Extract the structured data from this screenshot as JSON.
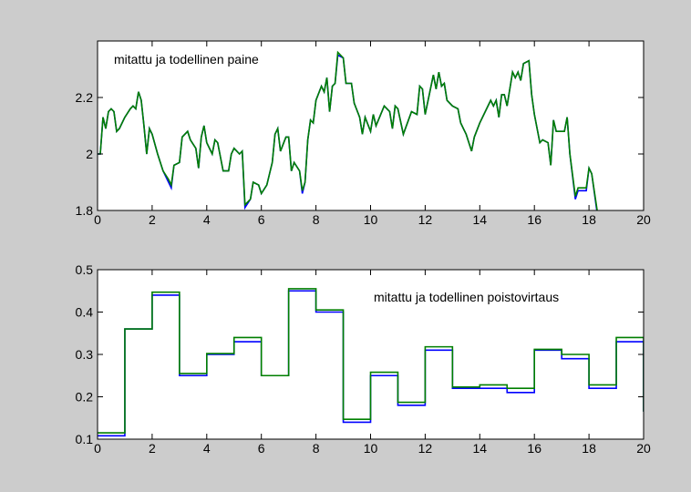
{
  "chart_data": [
    {
      "type": "line",
      "annotation": "mitattu ja todellinen paine",
      "x": [
        0,
        0.1,
        0.2,
        0.3,
        0.4,
        0.5,
        0.6,
        0.7,
        0.8,
        1.0,
        1.2,
        1.3,
        1.4,
        1.5,
        1.6,
        1.7,
        1.8,
        1.9,
        2.0,
        2.2,
        2.4,
        2.6,
        2.7,
        2.8,
        3.0,
        3.1,
        3.3,
        3.4,
        3.6,
        3.7,
        3.8,
        3.9,
        4.0,
        4.2,
        4.3,
        4.4,
        4.6,
        4.8,
        4.9,
        5.0,
        5.2,
        5.3,
        5.4,
        5.6,
        5.7,
        5.9,
        6.0,
        6.2,
        6.4,
        6.5,
        6.6,
        6.7,
        6.9,
        7.0,
        7.1,
        7.2,
        7.4,
        7.5,
        7.6,
        7.7,
        7.8,
        7.9,
        8.0,
        8.2,
        8.3,
        8.4,
        8.5,
        8.6,
        8.7,
        8.8,
        9.0,
        9.1,
        9.3,
        9.4,
        9.6,
        9.7,
        9.8,
        10.0,
        10.1,
        10.2,
        10.5,
        10.7,
        10.8,
        10.9,
        11.0,
        11.2,
        11.5,
        11.7,
        11.8,
        11.9,
        12.0,
        12.3,
        12.4,
        12.5,
        12.6,
        12.7,
        12.8,
        13.0,
        13.2,
        13.3,
        13.5,
        13.7,
        13.8,
        14.0,
        14.2,
        14.4,
        14.5,
        14.6,
        14.7,
        14.8,
        14.9,
        15.0,
        15.2,
        15.3,
        15.4,
        15.5,
        15.6,
        15.8,
        15.9,
        16.0,
        16.2,
        16.3,
        16.5,
        16.6,
        16.7,
        16.8,
        17.1,
        17.2,
        17.3,
        17.5,
        17.6,
        17.9,
        18.0,
        18.1,
        18.3
      ],
      "series": [
        {
          "color": "#0000ff",
          "values": [
            2.0,
            2.0,
            2.13,
            2.09,
            2.15,
            2.16,
            2.15,
            2.08,
            2.09,
            2.13,
            2.16,
            2.17,
            2.16,
            2.22,
            2.19,
            2.1,
            2.0,
            2.09,
            2.07,
            2.0,
            1.94,
            1.9,
            1.88,
            1.96,
            1.97,
            2.06,
            2.08,
            2.05,
            2.02,
            1.95,
            2.06,
            2.1,
            2.04,
            2.0,
            2.05,
            2.04,
            1.94,
            1.94,
            2.0,
            2.02,
            2.0,
            2.01,
            1.81,
            1.84,
            1.9,
            1.89,
            1.86,
            1.89,
            1.97,
            2.07,
            2.09,
            2.01,
            2.06,
            2.06,
            1.94,
            1.97,
            1.94,
            1.86,
            1.9,
            2.05,
            2.12,
            2.11,
            2.19,
            2.24,
            2.22,
            2.27,
            2.15,
            2.24,
            2.25,
            2.35,
            2.34,
            2.25,
            2.25,
            2.18,
            2.13,
            2.07,
            2.13,
            2.08,
            2.14,
            2.1,
            2.17,
            2.15,
            2.09,
            2.17,
            2.16,
            2.07,
            2.15,
            2.14,
            2.24,
            2.23,
            2.14,
            2.28,
            2.23,
            2.29,
            2.24,
            2.25,
            2.19,
            2.17,
            2.16,
            2.11,
            2.07,
            2.01,
            2.06,
            2.11,
            2.15,
            2.19,
            2.17,
            2.19,
            2.13,
            2.21,
            2.21,
            2.17,
            2.29,
            2.27,
            2.29,
            2.26,
            2.32,
            2.33,
            2.21,
            2.14,
            2.04,
            2.05,
            2.04,
            1.96,
            2.12,
            2.08,
            2.08,
            2.13,
            2.0,
            1.84,
            1.87,
            1.87,
            1.95,
            1.93,
            1.79
          ]
        },
        {
          "color": "#007f00",
          "values": [
            2.0,
            2.0,
            2.13,
            2.09,
            2.15,
            2.16,
            2.15,
            2.08,
            2.09,
            2.13,
            2.16,
            2.17,
            2.16,
            2.22,
            2.19,
            2.1,
            2.0,
            2.09,
            2.07,
            2.0,
            1.94,
            1.91,
            1.89,
            1.96,
            1.97,
            2.06,
            2.08,
            2.05,
            2.02,
            1.95,
            2.06,
            2.1,
            2.04,
            2.0,
            2.05,
            2.04,
            1.94,
            1.94,
            2.0,
            2.02,
            2.0,
            2.01,
            1.82,
            1.84,
            1.9,
            1.89,
            1.86,
            1.89,
            1.97,
            2.07,
            2.09,
            2.01,
            2.06,
            2.06,
            1.94,
            1.97,
            1.94,
            1.87,
            1.9,
            2.05,
            2.12,
            2.11,
            2.19,
            2.24,
            2.22,
            2.27,
            2.15,
            2.24,
            2.25,
            2.36,
            2.34,
            2.25,
            2.25,
            2.18,
            2.13,
            2.07,
            2.13,
            2.08,
            2.14,
            2.1,
            2.17,
            2.15,
            2.09,
            2.17,
            2.16,
            2.07,
            2.15,
            2.14,
            2.24,
            2.23,
            2.14,
            2.28,
            2.23,
            2.29,
            2.24,
            2.25,
            2.19,
            2.17,
            2.16,
            2.11,
            2.07,
            2.01,
            2.06,
            2.11,
            2.15,
            2.19,
            2.17,
            2.19,
            2.13,
            2.21,
            2.21,
            2.17,
            2.29,
            2.27,
            2.29,
            2.26,
            2.32,
            2.33,
            2.21,
            2.14,
            2.04,
            2.05,
            2.04,
            1.96,
            2.12,
            2.08,
            2.08,
            2.13,
            2.0,
            1.85,
            1.88,
            1.88,
            1.95,
            1.93,
            1.8
          ]
        }
      ],
      "xlim": [
        0,
        20
      ],
      "xticks": [
        0,
        2,
        4,
        6,
        8,
        10,
        12,
        14,
        16,
        18,
        20
      ],
      "ylim": [
        1.8,
        2.4
      ],
      "yticks": [
        1.8,
        2,
        2.2
      ]
    },
    {
      "type": "line",
      "annotation": "mitattu ja todellinen poistovirtaus",
      "x": [
        0,
        1,
        1,
        2,
        2,
        3,
        3,
        4,
        4,
        5,
        5,
        6,
        6,
        7,
        7,
        8,
        8,
        9,
        9,
        10,
        10,
        11,
        11,
        12,
        12,
        13,
        13,
        14,
        14,
        15,
        15,
        16,
        16,
        17,
        17,
        18,
        18,
        19,
        19,
        20,
        20
      ],
      "series": [
        {
          "color": "#0000ff",
          "values": [
            0.108,
            0.108,
            0.36,
            0.36,
            0.44,
            0.44,
            0.25,
            0.25,
            0.3,
            0.3,
            0.33,
            0.33,
            0.25,
            0.25,
            0.45,
            0.45,
            0.4,
            0.4,
            0.14,
            0.14,
            0.25,
            0.25,
            0.18,
            0.18,
            0.31,
            0.31,
            0.22,
            0.22,
            0.22,
            0.22,
            0.21,
            0.21,
            0.31,
            0.31,
            0.29,
            0.29,
            0.22,
            0.22,
            0.33,
            0.33,
            0.165
          ]
        },
        {
          "color": "#007f00",
          "values": [
            0.115,
            0.115,
            0.36,
            0.36,
            0.447,
            0.447,
            0.255,
            0.255,
            0.302,
            0.302,
            0.34,
            0.34,
            0.25,
            0.25,
            0.455,
            0.455,
            0.405,
            0.405,
            0.147,
            0.147,
            0.258,
            0.258,
            0.187,
            0.187,
            0.318,
            0.318,
            0.223,
            0.223,
            0.228,
            0.228,
            0.22,
            0.22,
            0.312,
            0.312,
            0.3,
            0.3,
            0.228,
            0.228,
            0.34,
            0.34,
            0.165
          ]
        }
      ],
      "xlim": [
        0,
        20
      ],
      "xticks": [
        0,
        2,
        4,
        6,
        8,
        10,
        12,
        14,
        16,
        18,
        20
      ],
      "ylim": [
        0.1,
        0.5
      ],
      "yticks": [
        0.1,
        0.2,
        0.3,
        0.4,
        0.5
      ]
    }
  ]
}
